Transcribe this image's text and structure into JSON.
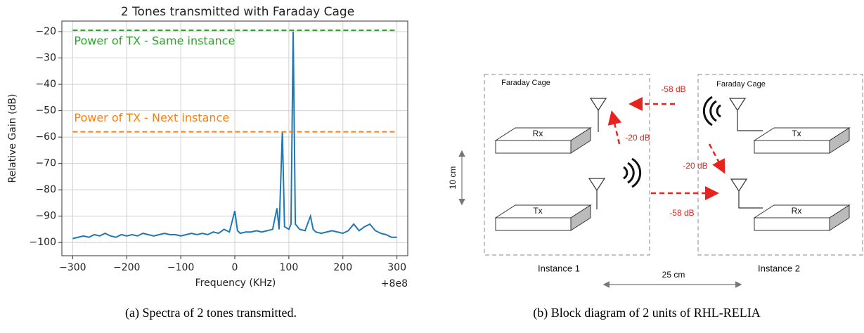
{
  "chart_data": {
    "type": "line",
    "title": "2 Tones transmitted with Faraday Cage",
    "x_label": "Frequency (KHz)",
    "x_offset_label": "+8e8",
    "y_label": "Relative Gain (dB)",
    "color": "#1f77b4",
    "grid": true,
    "x": [
      -300,
      -290,
      -280,
      -270,
      -260,
      -250,
      -240,
      -230,
      -220,
      -210,
      -200,
      -190,
      -180,
      -170,
      -160,
      -150,
      -140,
      -130,
      -120,
      -110,
      -100,
      -90,
      -80,
      -70,
      -60,
      -50,
      -40,
      -30,
      -20,
      -10,
      0,
      5,
      10,
      20,
      30,
      40,
      50,
      60,
      70,
      78,
      82,
      88,
      92,
      100,
      104,
      108,
      112,
      120,
      130,
      140,
      145,
      150,
      160,
      170,
      180,
      190,
      200,
      210,
      220,
      230,
      240,
      250,
      260,
      270,
      280,
      290,
      300
    ],
    "values": [
      -98.5,
      -98,
      -97.5,
      -98,
      -97,
      -97.5,
      -96.5,
      -97.5,
      -98,
      -97,
      -97.5,
      -97,
      -97.5,
      -96.5,
      -97,
      -97.5,
      -97,
      -96.5,
      -97,
      -97,
      -97.5,
      -97,
      -96.5,
      -97,
      -96.5,
      -97,
      -96,
      -96.5,
      -95,
      -96,
      -88,
      -95.5,
      -96.5,
      -96,
      -96,
      -95.5,
      -96,
      -95.5,
      -95,
      -87,
      -95,
      -58,
      -94,
      -95,
      -93,
      -20,
      -93,
      -95,
      -95.5,
      -90,
      -95,
      -96,
      -96.5,
      -96,
      -95.5,
      -96,
      -96.5,
      -95.5,
      -93,
      -95.5,
      -94,
      -93,
      -95.5,
      -96.5,
      -97,
      -98,
      -98
    ],
    "reference_lines": [
      {
        "name": "Power of TX - Same instance",
        "value": -19.5,
        "color": "#2ca02c"
      },
      {
        "name": "Power of TX - Next instance",
        "value": -58,
        "color": "#ff7f0e"
      }
    ],
    "xlim": [
      -320,
      320
    ],
    "xticks": [
      {
        "value": -300,
        "label": "−300"
      },
      {
        "value": -200,
        "label": "−200"
      },
      {
        "value": -100,
        "label": "−100"
      },
      0,
      100,
      200,
      300
    ],
    "ylim": [
      -105,
      -16
    ],
    "yticks": [
      {
        "value": -100,
        "label": "−100"
      },
      {
        "value": -90,
        "label": "−90"
      },
      {
        "value": -80,
        "label": "−80"
      },
      {
        "value": -70,
        "label": "−70"
      },
      {
        "value": -60,
        "label": "−60"
      },
      {
        "value": -50,
        "label": "−50"
      },
      {
        "value": -40,
        "label": "−40"
      },
      {
        "value": -30,
        "label": "−30"
      },
      {
        "value": -20,
        "label": "−20"
      }
    ]
  },
  "diagram": {
    "instances": [
      {
        "label": "Instance 1",
        "cage": "Faraday Cage",
        "units": [
          "Rx",
          "Tx"
        ]
      },
      {
        "label": "Instance 2",
        "cage": "Faraday Cage",
        "units": [
          "Tx",
          "Rx"
        ]
      }
    ],
    "links": [
      "-58 dB",
      "-20 dB",
      "-20 dB",
      "-58 dB"
    ],
    "dimensions": [
      "10 cm",
      "25 cm"
    ]
  },
  "captions": [
    "(a) Spectra of 2 tones transmitted.",
    "(b) Block diagram of 2 units of RHL-RELIA"
  ]
}
